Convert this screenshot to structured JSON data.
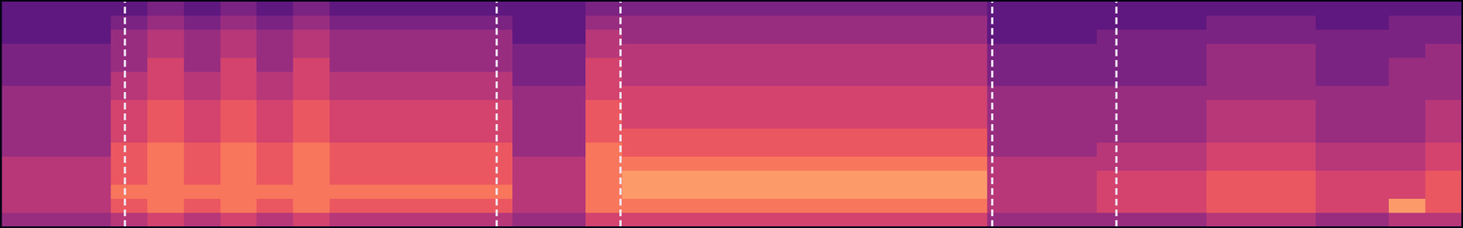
{
  "chart_data": {
    "type": "heatmap",
    "xlim": [
      0,
      40
    ],
    "ylim": [
      0,
      16
    ],
    "zlim": [
      -3,
      11
    ],
    "tick_labels": false,
    "color": "#efe6f7",
    "line_style": "dashed",
    "boundaries": [
      3.39,
      13.57,
      16.96,
      27.14,
      30.54
    ],
    "cells": [
      [
        3,
        3,
        3,
        4,
        5,
        4,
        5,
        4,
        5,
        4,
        4,
        4,
        4,
        4,
        3,
        3,
        5,
        5,
        5,
        5,
        5,
        5,
        5,
        5,
        5,
        5,
        5,
        3,
        3,
        3,
        3,
        3,
        3,
        4,
        4,
        4,
        3,
        3,
        4,
        4
      ],
      [
        4,
        4,
        4,
        6,
        7,
        6,
        7,
        6,
        7,
        6,
        6,
        6,
        6,
        6,
        4,
        4,
        7,
        7,
        7,
        7,
        7,
        7,
        7,
        7,
        7,
        7,
        7,
        4,
        4,
        4,
        5,
        5,
        5,
        6,
        6,
        6,
        5,
        5,
        8,
        6
      ],
      [
        4,
        4,
        4,
        7,
        7,
        7,
        7,
        7,
        7,
        7,
        7,
        7,
        7,
        7,
        4,
        4,
        7,
        8,
        8,
        8,
        8,
        8,
        8,
        8,
        8,
        8,
        8,
        4,
        4,
        4,
        5,
        5,
        5,
        6,
        6,
        6,
        5,
        5,
        5,
        6
      ],
      [
        4,
        4,
        4,
        6,
        7,
        6,
        7,
        6,
        7,
        6,
        6,
        6,
        6,
        6,
        4,
        4,
        7,
        8,
        8,
        8,
        8,
        8,
        8,
        8,
        8,
        8,
        8,
        4,
        4,
        4,
        5,
        5,
        5,
        6,
        6,
        6,
        5,
        5,
        5,
        6
      ],
      [
        4,
        4,
        4,
        6,
        7,
        6,
        7,
        6,
        7,
        6,
        6,
        6,
        6,
        6,
        4,
        4,
        7,
        7,
        7,
        7,
        7,
        7,
        7,
        7,
        7,
        7,
        7,
        4,
        4,
        4,
        4,
        4,
        4,
        5,
        5,
        5,
        4,
        4,
        4,
        5
      ],
      [
        3,
        3,
        3,
        6,
        7,
        6,
        7,
        6,
        7,
        6,
        6,
        6,
        6,
        6,
        3,
        3,
        7,
        6,
        6,
        6,
        6,
        6,
        6,
        6,
        6,
        6,
        6,
        3,
        3,
        3,
        4,
        4,
        4,
        5,
        5,
        5,
        4,
        4,
        4,
        5
      ],
      [
        3,
        3,
        3,
        5,
        6,
        5,
        6,
        5,
        6,
        5,
        5,
        5,
        5,
        5,
        3,
        3,
        6,
        6,
        6,
        6,
        6,
        6,
        6,
        6,
        6,
        6,
        6,
        3,
        3,
        3,
        3,
        3,
        3,
        4,
        4,
        4,
        3,
        3,
        3,
        4
      ],
      [
        3,
        3,
        3,
        5,
        6,
        5,
        6,
        5,
        6,
        5,
        5,
        5,
        5,
        5,
        3,
        3,
        6,
        5,
        5,
        5,
        5,
        5,
        5,
        5,
        5,
        5,
        5,
        3,
        3,
        3,
        3,
        3,
        3,
        4,
        4,
        4,
        3,
        3,
        3,
        4
      ],
      [
        3,
        3,
        3,
        5,
        6,
        5,
        6,
        5,
        6,
        5,
        5,
        5,
        5,
        5,
        3,
        3,
        6,
        5,
        5,
        5,
        5,
        5,
        5,
        5,
        5,
        5,
        5,
        3,
        3,
        3,
        3,
        3,
        3,
        4,
        4,
        4,
        3,
        3,
        3,
        4
      ],
      [
        3,
        3,
        3,
        4,
        5,
        4,
        5,
        4,
        5,
        4,
        4,
        4,
        4,
        4,
        3,
        3,
        5,
        5,
        5,
        5,
        5,
        5,
        5,
        5,
        5,
        5,
        5,
        3,
        3,
        3,
        3,
        3,
        3,
        3,
        3,
        3,
        3,
        3,
        3,
        3
      ],
      [
        2,
        2,
        2,
        4,
        5,
        4,
        5,
        4,
        5,
        4,
        4,
        4,
        4,
        4,
        2,
        2,
        5,
        4,
        4,
        4,
        4,
        4,
        4,
        4,
        4,
        4,
        4,
        2,
        2,
        2,
        2,
        2,
        2,
        3,
        3,
        3,
        2,
        2,
        3,
        3
      ],
      [
        2,
        2,
        2,
        3,
        5,
        3,
        5,
        3,
        5,
        3,
        3,
        3,
        3,
        3,
        2,
        2,
        5,
        4,
        4,
        4,
        4,
        4,
        4,
        4,
        4,
        4,
        4,
        2,
        2,
        2,
        2,
        2,
        2,
        3,
        3,
        3,
        2,
        2,
        3,
        3
      ],
      [
        2,
        2,
        2,
        3,
        4,
        3,
        4,
        3,
        4,
        3,
        3,
        3,
        3,
        3,
        2,
        2,
        4,
        4,
        4,
        4,
        4,
        4,
        4,
        4,
        4,
        4,
        4,
        2,
        2,
        2,
        2,
        2,
        2,
        3,
        3,
        3,
        2,
        2,
        2,
        3
      ],
      [
        1,
        1,
        1,
        3,
        4,
        3,
        4,
        3,
        4,
        3,
        3,
        3,
        3,
        3,
        1,
        1,
        4,
        3,
        3,
        3,
        3,
        3,
        3,
        3,
        3,
        3,
        3,
        1,
        1,
        1,
        2,
        2,
        2,
        2,
        2,
        2,
        2,
        2,
        2,
        2
      ],
      [
        1,
        1,
        1,
        2,
        3,
        2,
        3,
        2,
        3,
        2,
        2,
        2,
        2,
        2,
        1,
        1,
        3,
        3,
        3,
        3,
        3,
        3,
        3,
        3,
        3,
        3,
        3,
        1,
        1,
        1,
        1,
        1,
        1,
        2,
        2,
        2,
        1,
        1,
        2,
        2
      ],
      [
        1,
        1,
        1,
        1,
        2,
        1,
        2,
        1,
        2,
        1,
        1,
        1,
        1,
        1,
        1,
        1,
        2,
        2,
        2,
        2,
        2,
        2,
        2,
        2,
        2,
        2,
        2,
        1,
        1,
        1,
        1,
        1,
        1,
        1,
        1,
        1,
        1,
        1,
        1,
        1
      ]
    ]
  }
}
